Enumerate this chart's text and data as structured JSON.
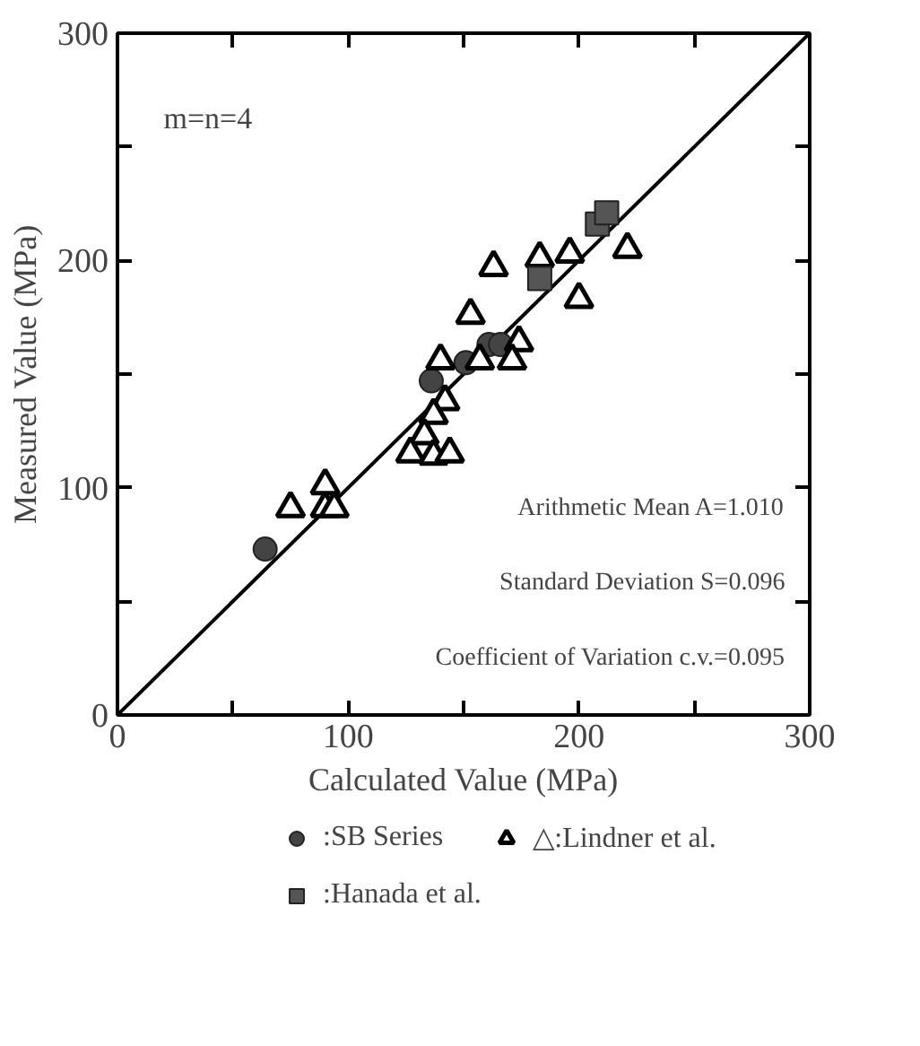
{
  "chart_data": {
    "type": "scatter",
    "xlabel": "Calculated Value (MPa)",
    "ylabel": "Measured Value (MPa)",
    "xlim": [
      0,
      300
    ],
    "ylim": [
      0,
      300
    ],
    "xticks": [
      0,
      {
        "value": 50,
        "label": null
      },
      100,
      {
        "value": 150,
        "label": null
      },
      200,
      {
        "value": 250,
        "label": null
      },
      300
    ],
    "yticks": [
      0,
      {
        "value": 50,
        "label": null
      },
      100,
      {
        "value": 150,
        "label": null
      },
      200,
      {
        "value": 250,
        "label": null
      },
      300
    ],
    "grid": false,
    "legend": "bottom",
    "annotations": [
      "m=n=4",
      "Arithmetic Mean  A=1.010",
      "Standard Deviation  S=0.096",
      "Coefficient of Variation  c.v.=0.095"
    ],
    "series": [
      {
        "type": "line",
        "color": "#000000",
        "x": [
          0,
          300
        ],
        "values": [
          0,
          300
        ]
      },
      {
        "name": ":SB Series",
        "color": "#444444",
        "marker": "circle",
        "x": [
          64,
          136,
          151,
          161,
          166
        ],
        "values": [
          73,
          147,
          155,
          163,
          163
        ]
      },
      {
        "name": "△:Lindner et al.",
        "color": "#000000",
        "marker": "triangle",
        "x": [
          163,
          183,
          196,
          221,
          200,
          153,
          174,
          171,
          140,
          157,
          142,
          137,
          133,
          127,
          137,
          144,
          90,
          75,
          90,
          94
        ],
        "values": [
          197,
          201,
          203,
          205,
          183,
          176,
          164,
          156,
          156,
          156,
          138,
          132,
          123,
          115,
          114,
          115,
          101,
          91,
          91,
          91
        ]
      },
      {
        "name": ":Hanada et al.",
        "color": "#555555",
        "marker": "square",
        "x": [
          183,
          208,
          212
        ],
        "values": [
          192,
          216,
          221
        ]
      }
    ]
  }
}
